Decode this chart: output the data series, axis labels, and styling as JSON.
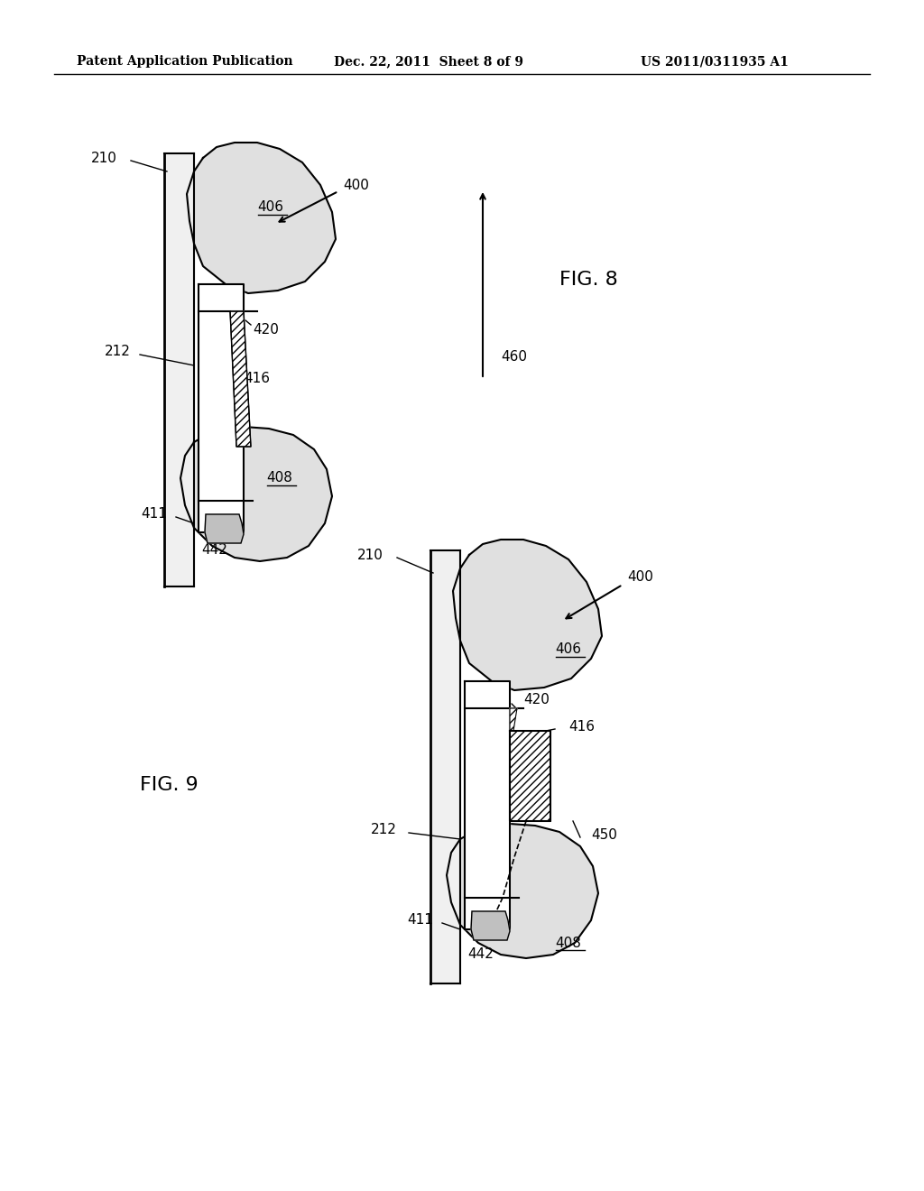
{
  "bg_color": "#ffffff",
  "header_left": "Patent Application Publication",
  "header_mid": "Dec. 22, 2011  Sheet 8 of 9",
  "header_right": "US 2011/0311935 A1",
  "fig8_label": "FIG. 8",
  "fig9_label": "FIG. 9",
  "title_fontsize": 11,
  "label_fontsize": 11
}
